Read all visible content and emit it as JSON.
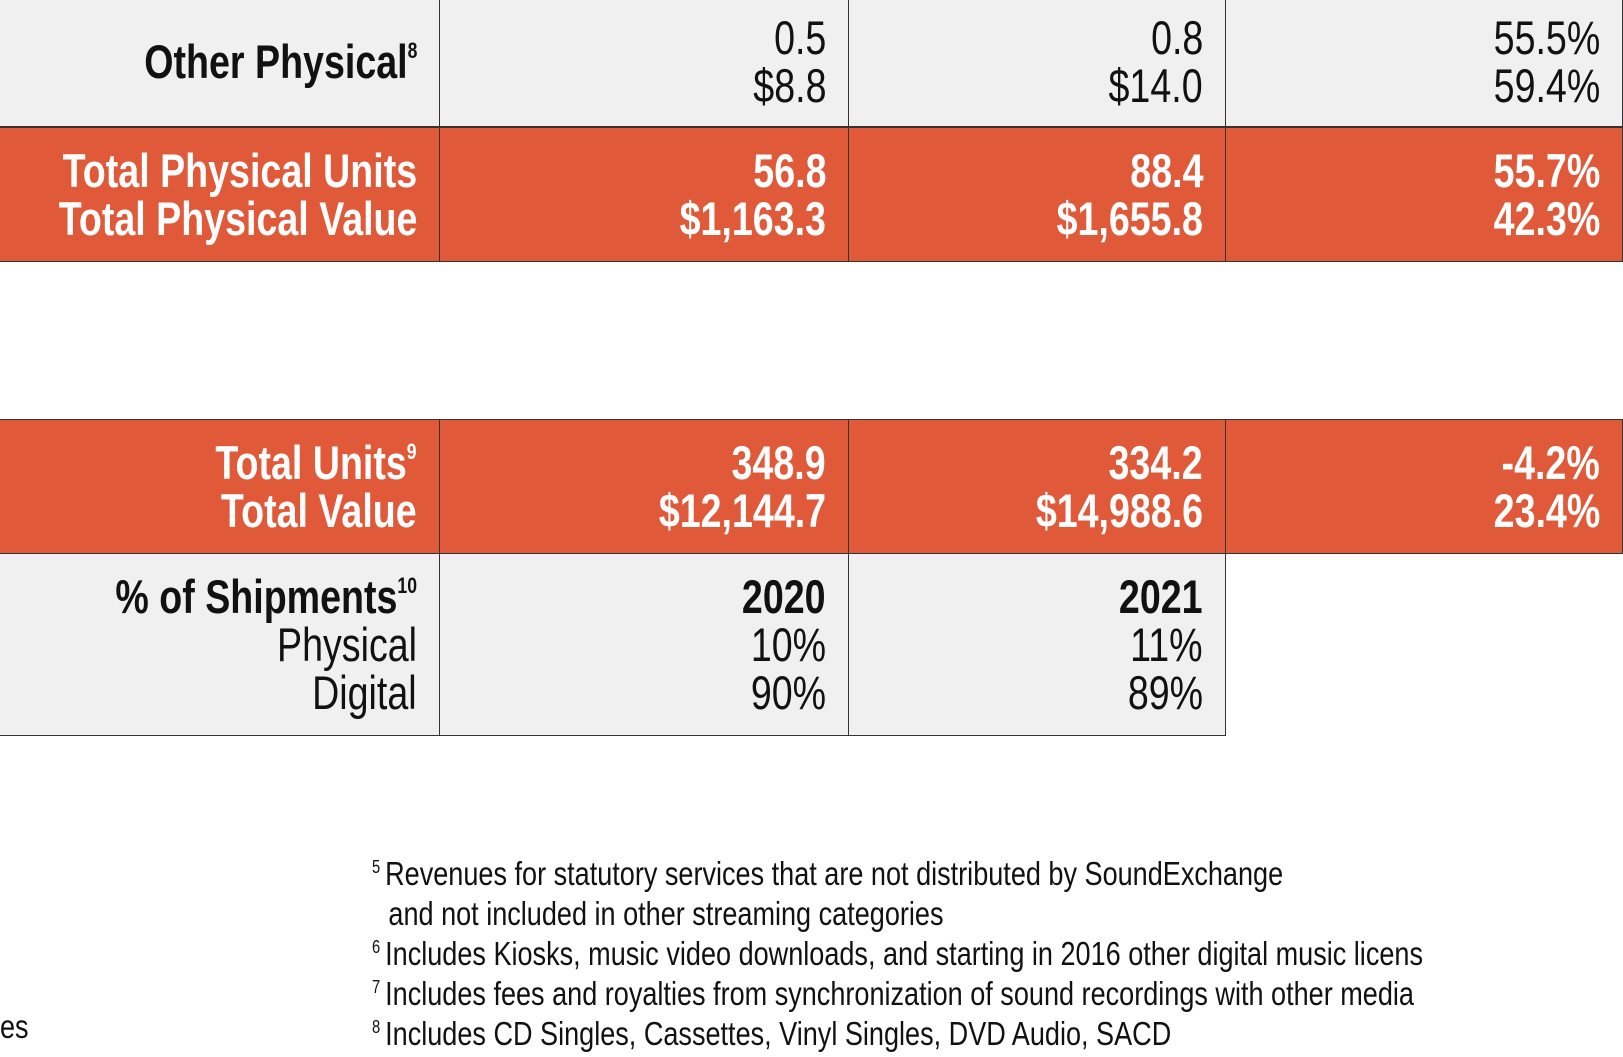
{
  "table": {
    "rows": [
      {
        "label": [
          "Other Physical"
        ],
        "label_note": "8",
        "cells": [
          [
            "0.5",
            "$8.8"
          ],
          [
            "0.8",
            "$14.0"
          ],
          [
            "55.5%",
            "59.4%"
          ]
        ]
      },
      {
        "label": [
          "Total Physical Units",
          "Total Physical Value"
        ],
        "cells": [
          [
            "56.8",
            "$1,163.3"
          ],
          [
            "88.4",
            "$1,655.8"
          ],
          [
            "55.7%",
            "42.3%"
          ]
        ]
      },
      {
        "label": [
          "Total Units",
          "Total Value"
        ],
        "label_note": "9",
        "cells": [
          [
            "348.9",
            "$12,144.7"
          ],
          [
            "334.2",
            "$14,988.6"
          ],
          [
            "-4.2%",
            "23.4%"
          ]
        ]
      },
      {
        "label": [
          "% of Shipments",
          "Physical",
          "Digital"
        ],
        "label_note": "10",
        "cells": [
          [
            "2020",
            "10%",
            "90%"
          ],
          [
            "2021",
            "11%",
            "89%"
          ]
        ]
      }
    ]
  },
  "footnotes": [
    {
      "mark": "5",
      "lines": [
        "Revenues for statutory services that are not distributed by SoundExchange",
        "and not included in other streaming categories"
      ]
    },
    {
      "mark": "6",
      "lines": [
        "Includes Kiosks, music video downloads, and starting in 2016 other digital music licens"
      ]
    },
    {
      "mark": "7",
      "lines": [
        "Includes fees and royalties from synchronization of sound recordings with other media"
      ]
    },
    {
      "mark": "8",
      "lines": [
        "Includes CD Singles, Cassettes, Vinyl Singles, DVD Audio, SACD"
      ]
    }
  ],
  "fragment": "es"
}
